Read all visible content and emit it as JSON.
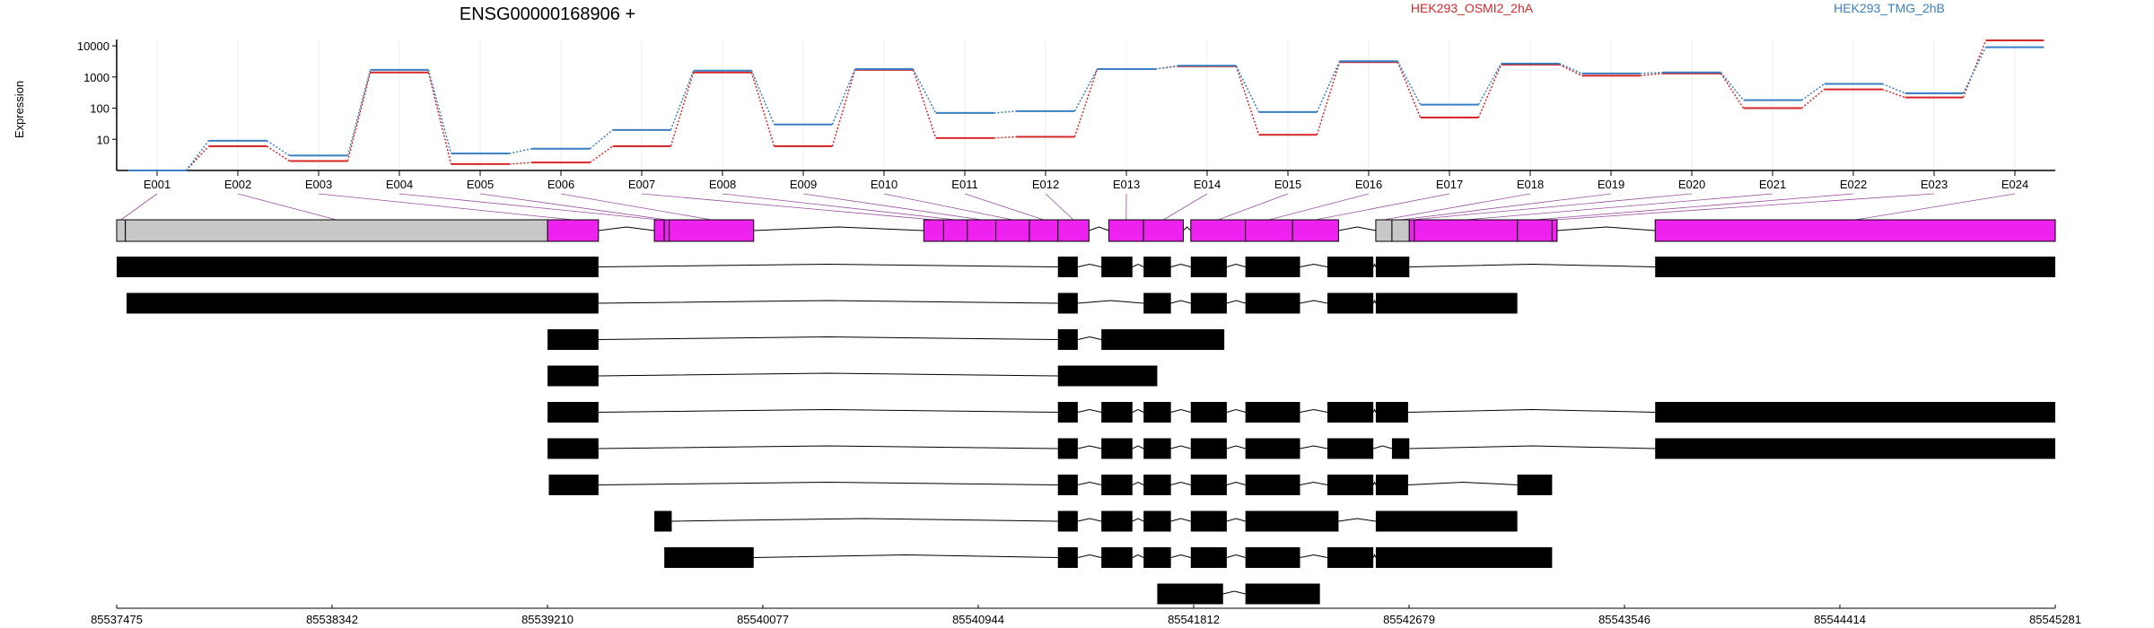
{
  "chart_data": {
    "type": "line",
    "title": "ENSG00000168906 +",
    "ylabel": "Expression",
    "y_scale": "log",
    "yticks": [
      10,
      100,
      1000,
      10000
    ],
    "ytick_labels": [
      "10",
      "100",
      "1000",
      "10000"
    ],
    "ylim": [
      1,
      16000
    ],
    "categories": [
      "E001",
      "E002",
      "E003",
      "E004",
      "E005",
      "E006",
      "E007",
      "E008",
      "E009",
      "E010",
      "E011",
      "E012",
      "E013",
      "E014",
      "E015",
      "E016",
      "E017",
      "E018",
      "E019",
      "E020",
      "E021",
      "E022",
      "E023",
      "E024"
    ],
    "series": [
      {
        "name": "HEK293_OSMI2_2hA",
        "color": "#d62728",
        "values": [
          1,
          6,
          2,
          1400,
          1.6,
          1.8,
          6,
          1400,
          6,
          1700,
          11,
          12,
          1800,
          2200,
          14,
          3000,
          50,
          2500,
          1100,
          1300,
          100,
          400,
          220,
          15000
        ]
      },
      {
        "name": "HEK293_TMG_2hB",
        "color": "#3a7fc1",
        "values": [
          1,
          9,
          3,
          1700,
          3.5,
          5,
          20,
          1600,
          30,
          1800,
          70,
          80,
          1800,
          2300,
          75,
          3200,
          130,
          2700,
          1300,
          1400,
          180,
          600,
          300,
          9000
        ]
      }
    ],
    "genomic_axis": {
      "range": [
        85537475,
        85545281
      ],
      "tick_labels": [
        "85537475",
        "85538342",
        "85539210",
        "85540077",
        "85540944",
        "85541812",
        "85542679",
        "85543546",
        "85544414",
        "85545281"
      ]
    },
    "exons": [
      {
        "id": "E001",
        "start": 85537475,
        "end": 85537510,
        "region": "utr"
      },
      {
        "id": "E002",
        "start": 85537510,
        "end": 85539210,
        "region": "utr"
      },
      {
        "id": "E003",
        "start": 85539210,
        "end": 85539415,
        "region": "coding"
      },
      {
        "id": "E004",
        "start": 85539640,
        "end": 85539680,
        "region": "coding"
      },
      {
        "id": "E005",
        "start": 85539680,
        "end": 85539700,
        "region": "coding"
      },
      {
        "id": "E006",
        "start": 85539700,
        "end": 85540040,
        "region": "coding"
      },
      {
        "id": "E007",
        "start": 85540725,
        "end": 85540805,
        "region": "coding"
      },
      {
        "id": "E008",
        "start": 85540805,
        "end": 85540900,
        "region": "coding"
      },
      {
        "id": "E009",
        "start": 85540900,
        "end": 85541015,
        "region": "coding"
      },
      {
        "id": "E010",
        "start": 85541015,
        "end": 85541150,
        "region": "coding"
      },
      {
        "id": "E011",
        "start": 85541150,
        "end": 85541265,
        "region": "coding"
      },
      {
        "id": "E012",
        "start": 85541265,
        "end": 85541390,
        "region": "coding"
      },
      {
        "id": "E013",
        "start": 85541470,
        "end": 85541610,
        "region": "coding"
      },
      {
        "id": "E014",
        "start": 85541610,
        "end": 85541770,
        "region": "coding"
      },
      {
        "id": "E015",
        "start": 85541800,
        "end": 85542020,
        "region": "coding"
      },
      {
        "id": "E016",
        "start": 85542020,
        "end": 85542210,
        "region": "coding"
      },
      {
        "id": "E017",
        "start": 85542210,
        "end": 85542395,
        "region": "coding"
      },
      {
        "id": "E018",
        "start": 85542545,
        "end": 85542610,
        "region": "utr"
      },
      {
        "id": "E019",
        "start": 85542610,
        "end": 85542680,
        "region": "utr"
      },
      {
        "id": "E020",
        "start": 85542680,
        "end": 85542700,
        "region": "coding"
      },
      {
        "id": "E021",
        "start": 85542700,
        "end": 85543115,
        "region": "coding"
      },
      {
        "id": "E022",
        "start": 85543115,
        "end": 85543255,
        "region": "coding"
      },
      {
        "id": "E023",
        "start": 85543255,
        "end": 85543275,
        "region": "coding"
      },
      {
        "id": "E024",
        "start": 85543670,
        "end": 85545281,
        "region": "coding"
      }
    ],
    "transcripts": [
      [
        [
          85537475,
          85539415
        ],
        [
          85541265,
          85541345
        ],
        [
          85541440,
          85541565
        ],
        [
          85541610,
          85541720
        ],
        [
          85541800,
          85541945
        ],
        [
          85542020,
          85542240
        ],
        [
          85542350,
          85542535
        ],
        [
          85542545,
          85542680
        ],
        [
          85543670,
          85545281
        ]
      ],
      [
        [
          85537515,
          85539415
        ],
        [
          85541265,
          85541345
        ],
        [
          85541610,
          85541720
        ],
        [
          85541800,
          85541945
        ],
        [
          85542020,
          85542240
        ],
        [
          85542350,
          85542535
        ],
        [
          85542545,
          85543115
        ]
      ],
      [
        [
          85539210,
          85539415
        ],
        [
          85541265,
          85541345
        ],
        [
          85541440,
          85541935
        ]
      ],
      [
        [
          85539210,
          85539415
        ],
        [
          85541265,
          85541665
        ]
      ],
      [
        [
          85539210,
          85539415
        ],
        [
          85541265,
          85541345
        ],
        [
          85541440,
          85541565
        ],
        [
          85541610,
          85541720
        ],
        [
          85541800,
          85541945
        ],
        [
          85542020,
          85542240
        ],
        [
          85542350,
          85542535
        ],
        [
          85542545,
          85542675
        ],
        [
          85543670,
          85545281
        ]
      ],
      [
        [
          85539210,
          85539415
        ],
        [
          85541265,
          85541345
        ],
        [
          85541440,
          85541565
        ],
        [
          85541610,
          85541720
        ],
        [
          85541800,
          85541945
        ],
        [
          85542020,
          85542240
        ],
        [
          85542350,
          85542535
        ],
        [
          85542610,
          85542680
        ],
        [
          85543670,
          85545281
        ]
      ],
      [
        [
          85539215,
          85539415
        ],
        [
          85541265,
          85541345
        ],
        [
          85541440,
          85541565
        ],
        [
          85541610,
          85541720
        ],
        [
          85541800,
          85541945
        ],
        [
          85542020,
          85542240
        ],
        [
          85542350,
          85542535
        ],
        [
          85542545,
          85542675
        ],
        [
          85543115,
          85543255
        ]
      ],
      [
        [
          85539640,
          85539710
        ],
        [
          85541265,
          85541345
        ],
        [
          85541440,
          85541565
        ],
        [
          85541610,
          85541720
        ],
        [
          85541800,
          85541945
        ],
        [
          85542020,
          85542395
        ],
        [
          85542545,
          85543115
        ]
      ],
      [
        [
          85539680,
          85540040
        ],
        [
          85541265,
          85541345
        ],
        [
          85541440,
          85541565
        ],
        [
          85541610,
          85541720
        ],
        [
          85541800,
          85541945
        ],
        [
          85542020,
          85542240
        ],
        [
          85542350,
          85542535
        ],
        [
          85542545,
          85543255
        ]
      ],
      [
        [
          85541665,
          85541930
        ],
        [
          85542020,
          85542320
        ]
      ]
    ],
    "colors": {
      "coding": "#ee22ee",
      "utr": "#c8c8c8",
      "transcript_exon": "#000000",
      "grid": "#eeeeee"
    }
  }
}
